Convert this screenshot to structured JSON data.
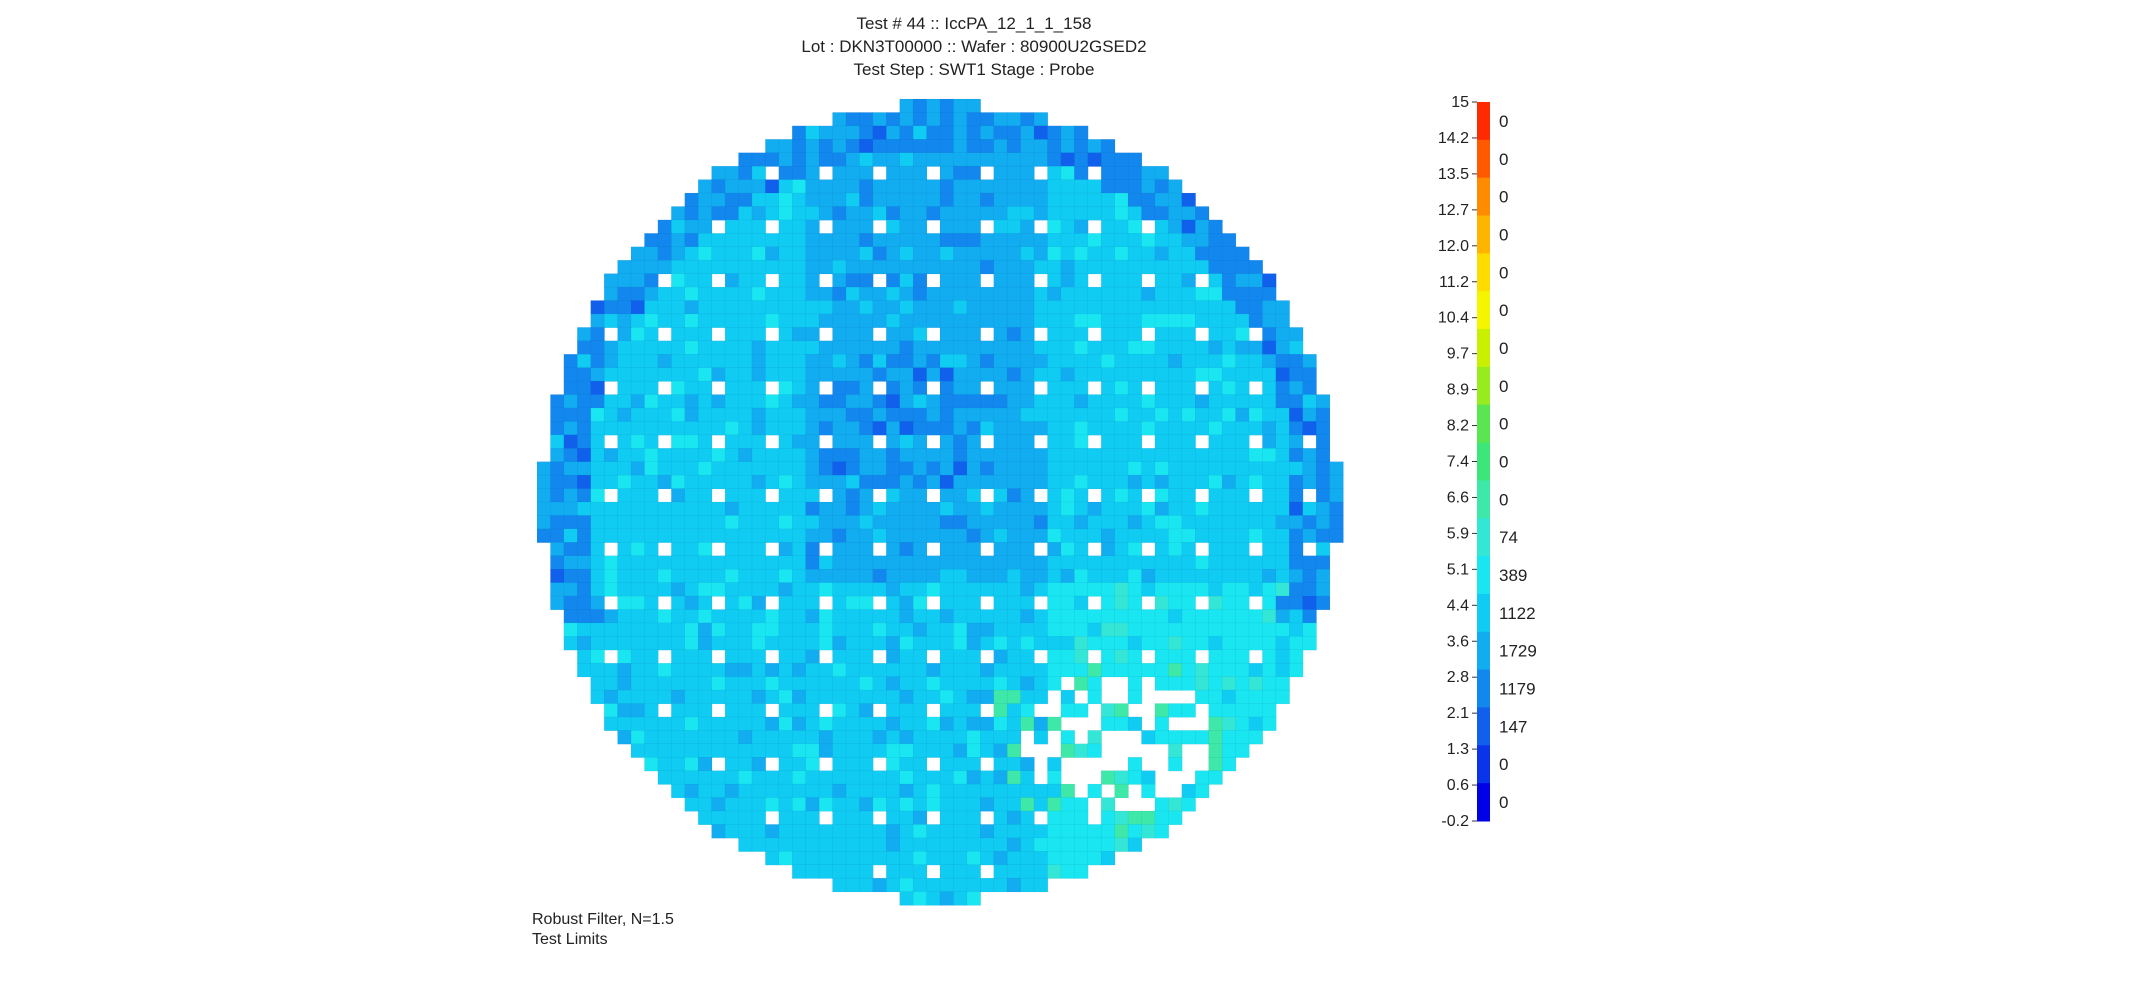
{
  "chart_data": {
    "type": "heatmap",
    "title_lines": [
      "Test #  44 :: IccPA_12_1_1_158",
      "Lot : DKN3T00000 :: Wafer : 80900U2GSED2",
      "Test Step : SWT1 Stage : Probe"
    ],
    "footer_lines": [
      "Robust Filter, N=1.5",
      "Test Limits"
    ],
    "wafer": {
      "shape": "circle",
      "grid_size": 60,
      "dominant_values_description_free": true,
      "value_range": [
        -0.2,
        15
      ]
    },
    "colorbar": {
      "tick_labels": [
        "15",
        "14.2",
        "13.5",
        "12.7",
        "12.0",
        "11.2",
        "10.4",
        "9.7",
        "8.9",
        "8.2",
        "7.4",
        "6.6",
        "5.9",
        "5.1",
        "4.4",
        "3.6",
        "2.8",
        "2.1",
        "1.3",
        "0.6",
        "-0.2"
      ],
      "bins": [
        {
          "color": "#ff2a00",
          "count": "0"
        },
        {
          "color": "#ff5a00",
          "count": "0"
        },
        {
          "color": "#ff8c00",
          "count": "0"
        },
        {
          "color": "#ffb400",
          "count": "0"
        },
        {
          "color": "#ffdc00",
          "count": "0"
        },
        {
          "color": "#f5f500",
          "count": "0"
        },
        {
          "color": "#c8f000",
          "count": "0"
        },
        {
          "color": "#96ec1e",
          "count": "0"
        },
        {
          "color": "#5ae650",
          "count": "0"
        },
        {
          "color": "#3ce678",
          "count": "0"
        },
        {
          "color": "#3de8a8",
          "count": "0"
        },
        {
          "color": "#34e6d6",
          "count": "74"
        },
        {
          "color": "#19e6f0",
          "count": "389"
        },
        {
          "color": "#10ccf2",
          "count": "1122"
        },
        {
          "color": "#12acf0",
          "count": "1729"
        },
        {
          "color": "#1288ee",
          "count": "1179"
        },
        {
          "color": "#1060ec",
          "count": "147"
        },
        {
          "color": "#0a34ea",
          "count": "0"
        },
        {
          "color": "#0000e6",
          "count": "0"
        }
      ]
    }
  }
}
